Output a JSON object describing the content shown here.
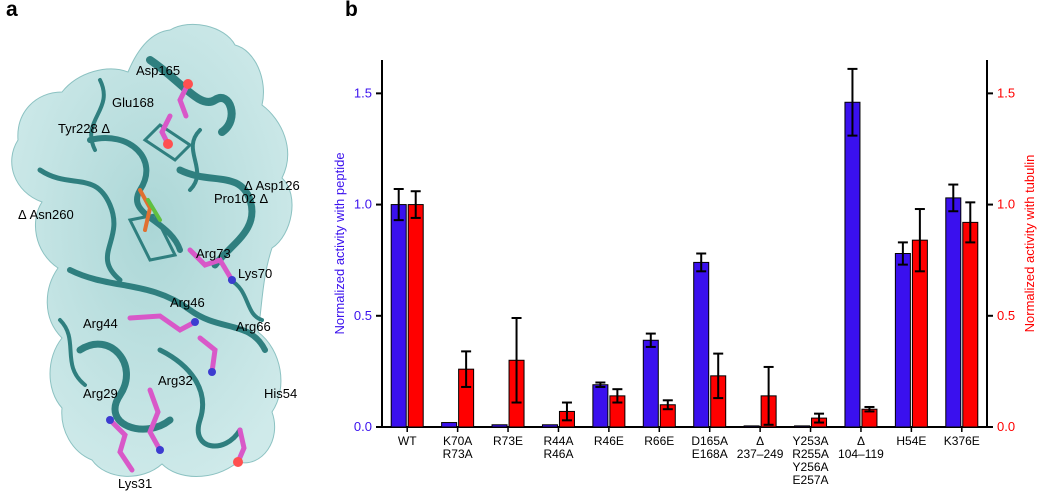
{
  "panels": {
    "a": {
      "letter": "a",
      "residue_labels": [
        "Asp165",
        "Glu168",
        "Tyr228 Δ",
        "Δ Asp126",
        "Pro102 Δ",
        "Δ Asn260",
        "Arg73",
        "Lys70",
        "Arg46",
        "Arg44",
        "Arg66",
        "Arg32",
        "Arg29",
        "His54",
        "Lys31"
      ]
    },
    "b": {
      "letter": "b"
    }
  },
  "colors": {
    "peptide": "#3a10ee",
    "tubulin": "#ff0000",
    "protein_surface": "#a8d8d8",
    "ribbon": "#2f7f7f",
    "sticks": "#d858c8"
  },
  "chart_data": {
    "type": "bar",
    "categories": [
      [
        "WT"
      ],
      [
        "K70A",
        "R73A"
      ],
      [
        "R73E"
      ],
      [
        "R44A",
        "R46A"
      ],
      [
        "R46E"
      ],
      [
        "R66E"
      ],
      [
        "D165A",
        "E168A"
      ],
      [
        "Δ",
        "237–249"
      ],
      [
        "Y253A",
        "R255A",
        "Y256A",
        "E257A"
      ],
      [
        "Δ",
        "104–119"
      ],
      [
        "H54E"
      ],
      [
        "K376E"
      ]
    ],
    "series": [
      {
        "axis": "left",
        "values": [
          1.0,
          0.02,
          0.01,
          0.01,
          0.19,
          0.39,
          0.74,
          0.005,
          0.005,
          1.46,
          0.78,
          1.03
        ],
        "errors": [
          0.07,
          0.0,
          0.0,
          0.0,
          0.01,
          0.03,
          0.04,
          0.0,
          0.0,
          0.15,
          0.05,
          0.06
        ]
      },
      {
        "axis": "right",
        "values": [
          1.0,
          0.26,
          0.3,
          0.07,
          0.14,
          0.1,
          0.23,
          0.14,
          0.04,
          0.08,
          0.84,
          0.92
        ],
        "errors": [
          0.06,
          0.08,
          0.19,
          0.04,
          0.03,
          0.02,
          0.1,
          0.13,
          0.02,
          0.01,
          0.14,
          0.09
        ]
      }
    ],
    "ylabel_left": "Normalized activity with peptide",
    "ylabel_right": "Normalized activity with tubulin",
    "ylim_left": [
      0,
      1.65
    ],
    "ylim_right": [
      0,
      1.65
    ],
    "yticks_left": [
      "0.0",
      "0.5",
      "1.0",
      "1.5"
    ],
    "yticks_right": [
      "0.0",
      "0.5",
      "1.0",
      "1.5"
    ],
    "grid": false
  }
}
